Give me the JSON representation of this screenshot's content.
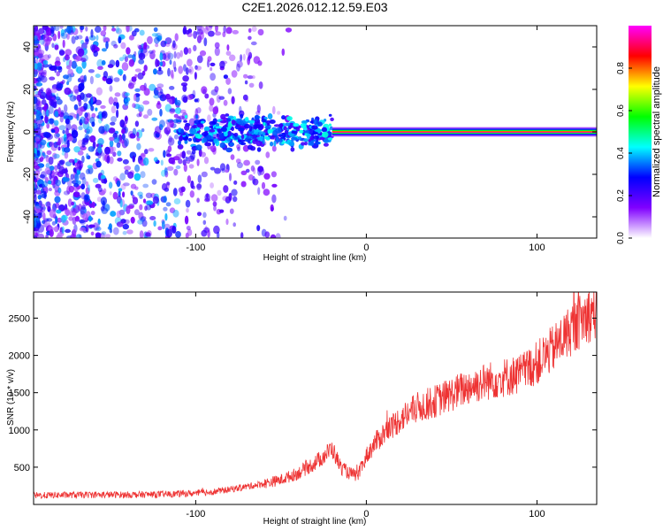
{
  "chart_data": [
    {
      "type": "heatmap",
      "title": "C2E1.2026.012.12.59.E03",
      "xlabel": "Height of straight line (km)",
      "ylabel": "Frequency (Hz)",
      "xlim": [
        -195,
        135
      ],
      "ylim": [
        -50,
        50
      ],
      "xticks": [
        -100,
        0,
        100
      ],
      "yticks": [
        -40,
        -20,
        0,
        20,
        40
      ],
      "colorbar": {
        "label": "Normalized spectral amplitude",
        "range": [
          0,
          1
        ],
        "ticks": [
          "0.0",
          "0.2",
          "0.4",
          "0.6",
          "0.8"
        ],
        "colors": [
          "#ffffff",
          "#8000ff",
          "#0000ff",
          "#00ffff",
          "#00ff00",
          "#ffff00",
          "#ff0000",
          "#ff00ff"
        ]
      },
      "ridge": {
        "frequency_hz": 0,
        "x_start": -110,
        "x_end": 135,
        "strong_from_x": -20
      }
    },
    {
      "type": "line",
      "xlabel": "Height of straight line (km)",
      "ylabel": "SNR (10 * v/v)",
      "xlim": [
        -195,
        135
      ],
      "ylim": [
        0,
        2850
      ],
      "xticks": [
        -100,
        0,
        100
      ],
      "yticks": [
        500,
        1000,
        1500,
        2000,
        2500
      ],
      "series": [
        {
          "name": "SNR",
          "color": "#ee3333",
          "x": [
            -195,
            -180,
            -160,
            -140,
            -120,
            -100,
            -90,
            -80,
            -70,
            -60,
            -50,
            -40,
            -30,
            -25,
            -20,
            -15,
            -10,
            -5,
            0,
            5,
            10,
            15,
            20,
            30,
            40,
            50,
            60,
            70,
            80,
            90,
            100,
            110,
            120,
            130,
            135
          ],
          "y": [
            120,
            125,
            130,
            130,
            135,
            150,
            170,
            200,
            240,
            280,
            330,
            420,
            560,
            650,
            750,
            500,
            420,
            380,
            650,
            820,
            950,
            1050,
            1150,
            1300,
            1380,
            1480,
            1580,
            1650,
            1700,
            1750,
            1900,
            2100,
            2350,
            2550,
            2600
          ]
        }
      ]
    }
  ]
}
